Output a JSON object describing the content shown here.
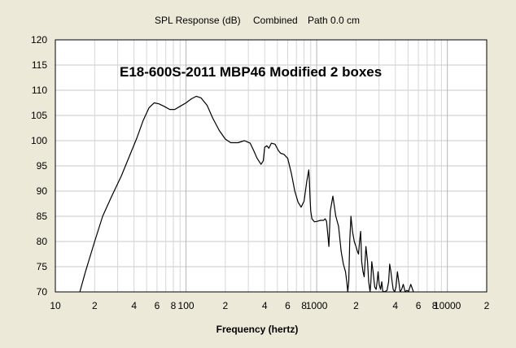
{
  "header": {
    "spl_label": "SPL Response (dB)",
    "mode_label": "Combined",
    "path_label": "Path 0.0 cm"
  },
  "chart_data": {
    "type": "line",
    "title": "SPL Response (dB)   Combined   Path 0.0 cm",
    "xlabel": "Frequency (hertz)",
    "ylabel": "",
    "x_scale": "log",
    "xlim": [
      10,
      20000
    ],
    "ylim": [
      70,
      120
    ],
    "grid": true,
    "annotation": "E18-600S-2011 MBP46 Modified 2 boxes",
    "y_ticks": [
      70,
      75,
      80,
      85,
      90,
      95,
      100,
      105,
      110,
      115,
      120
    ],
    "x_ticks": [
      {
        "value": 10,
        "label": "10"
      },
      {
        "value": 20,
        "label": "2"
      },
      {
        "value": 40,
        "label": "4"
      },
      {
        "value": 60,
        "label": "6"
      },
      {
        "value": 80,
        "label": "8"
      },
      {
        "value": 100,
        "label": "100"
      },
      {
        "value": 200,
        "label": "2"
      },
      {
        "value": 400,
        "label": "4"
      },
      {
        "value": 600,
        "label": "6"
      },
      {
        "value": 800,
        "label": "8"
      },
      {
        "value": 1000,
        "label": "1000"
      },
      {
        "value": 2000,
        "label": "2"
      },
      {
        "value": 4000,
        "label": "4"
      },
      {
        "value": 6000,
        "label": "6"
      },
      {
        "value": 8000,
        "label": "8"
      },
      {
        "value": 10000,
        "label": "10000"
      },
      {
        "value": 20000,
        "label": "2"
      }
    ],
    "series": [
      {
        "color": "#000000",
        "x": [
          15.4,
          17,
          20,
          23,
          27,
          32,
          37,
          42,
          47,
          52,
          57,
          62,
          68,
          75,
          82,
          90,
          100,
          110,
          120,
          130,
          145,
          160,
          180,
          200,
          220,
          250,
          280,
          310,
          330,
          350,
          375,
          390,
          400,
          415,
          430,
          450,
          480,
          510,
          530,
          560,
          600,
          640,
          680,
          720,
          760,
          800,
          840,
          870,
          880,
          890,
          900,
          920,
          960,
          1010,
          1070,
          1130,
          1160,
          1190,
          1220,
          1240,
          1270,
          1330,
          1400,
          1470,
          1540,
          1600,
          1660,
          1700,
          1730,
          1760,
          1790,
          1830,
          1880,
          1940,
          2000,
          2050,
          2090,
          2130,
          2170,
          2210,
          2260,
          2310,
          2380,
          2450,
          2500,
          2560,
          2600,
          2640,
          2700,
          2780,
          2850,
          2900,
          2950,
          3010,
          3080,
          3150,
          3200,
          3270,
          3350,
          3450,
          3550,
          3620,
          3700,
          3780,
          3850,
          3950,
          4050,
          4150,
          4250,
          4350,
          4470,
          4600,
          4750,
          4900,
          5050,
          5250,
          5500
        ],
        "y": [
          70,
          74,
          80,
          85,
          89,
          93,
          97,
          100.5,
          104,
          106.5,
          107.5,
          107.3,
          106.8,
          106.2,
          106.2,
          106.8,
          107.5,
          108.3,
          108.8,
          108.5,
          107,
          104.5,
          102,
          100.3,
          99.6,
          99.6,
          100,
          99.5,
          98,
          96.5,
          95.3,
          96,
          98.7,
          99,
          98.5,
          99.5,
          99.3,
          98,
          97.5,
          97.3,
          96.5,
          93.5,
          90,
          87.8,
          86.8,
          88,
          92,
          94.2,
          91.8,
          88.5,
          86,
          84.5,
          83.9,
          84,
          84.2,
          84.2,
          84.5,
          84,
          81,
          79,
          86,
          89,
          85,
          83,
          78,
          75.5,
          74,
          72,
          70,
          72,
          80,
          85,
          82,
          80,
          79,
          78,
          77.5,
          80,
          82,
          76,
          74,
          73,
          79,
          76,
          72,
          70,
          72,
          76,
          74,
          71,
          70.5,
          72,
          74,
          71.5,
          70.5,
          72,
          70.2,
          70,
          70.1,
          70.3,
          72,
          75.5,
          74,
          72,
          70.5,
          70,
          71,
          74,
          72,
          70,
          70.5,
          71.5,
          70,
          70.3,
          70.1,
          71.5,
          70
        ]
      }
    ]
  }
}
